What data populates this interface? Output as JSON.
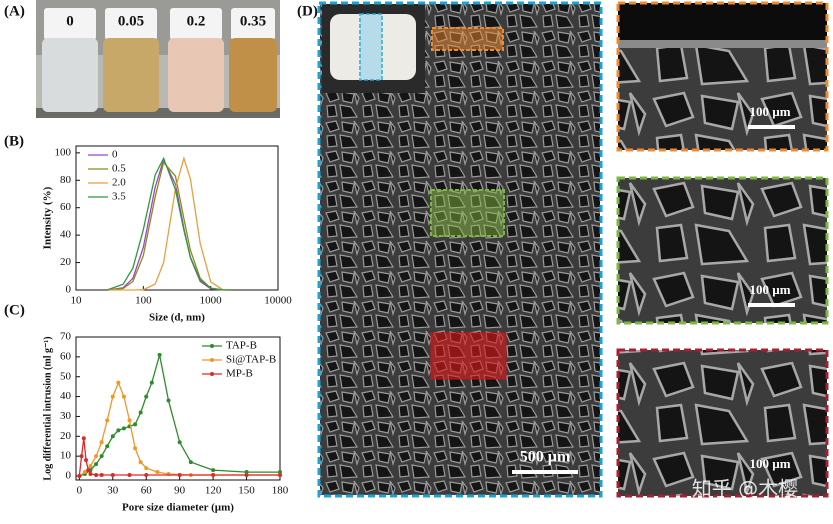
{
  "chart_data": [
    {
      "type": "line",
      "x_label": "Size (d, nm)",
      "y_label": "Intensity (%)",
      "log_x": true,
      "x": [
        30,
        50,
        70,
        100,
        150,
        200,
        300,
        400,
        500,
        700,
        1000,
        1500,
        2000
      ],
      "xlim": [
        10,
        10000
      ],
      "xticks": [
        10,
        100,
        1000,
        10000
      ],
      "ylim": [
        0,
        105
      ],
      "yticks": [
        0,
        20,
        40,
        60,
        80,
        100
      ],
      "legend": "top-left",
      "markers": false,
      "series": [
        {
          "name": "0",
          "color": "#a040d0",
          "values": [
            0,
            1.6,
            8.5,
            31,
            75,
            95,
            77,
            45,
            23.5,
            6.2,
            0.9,
            0,
            0
          ]
        },
        {
          "name": "0.5",
          "color": "#8a8a1a",
          "values": [
            0,
            1.1,
            6.2,
            25,
            68,
            93,
            83,
            52,
            29,
            8.5,
            1.4,
            0.1,
            0
          ]
        },
        {
          "name": "2.0",
          "color": "#e8a040",
          "values": [
            0,
            0,
            0,
            0.2,
            4.3,
            20,
            74,
            96,
            81,
            34,
            6,
            0.3,
            0
          ]
        },
        {
          "name": "3.5",
          "color": "#2e9a3a",
          "values": [
            0.3,
            4.2,
            16,
            44,
            84,
            96,
            73,
            43.5,
            24,
            7.3,
            1.4,
            0.1,
            0
          ]
        }
      ]
    },
    {
      "type": "line",
      "x_label": "Pore size diameter (µm)",
      "y_label": "Log differential intrusion (ml g⁻¹)",
      "log_x": false,
      "xlim": [
        -3,
        180
      ],
      "xticks": [
        0,
        30,
        60,
        90,
        120,
        150,
        180
      ],
      "ylim": [
        -2,
        70
      ],
      "yticks": [
        0,
        10,
        20,
        30,
        40,
        50,
        60,
        70
      ],
      "legend": "top-right",
      "markers": true,
      "series": [
        {
          "name": "TAP-B",
          "color": "#2e8b2e",
          "x": [
            0,
            5,
            10,
            15,
            20,
            25,
            30,
            35,
            40,
            45,
            50,
            55,
            60,
            65,
            72,
            80,
            90,
            100,
            120,
            150,
            180
          ],
          "values": [
            0,
            1,
            3,
            6,
            10,
            15,
            20,
            23,
            24,
            25,
            26,
            32,
            40,
            47,
            61,
            38,
            17,
            7,
            3,
            2,
            2
          ]
        },
        {
          "name": "Si@TAP-B",
          "color": "#f0962a",
          "x": [
            0,
            5,
            10,
            15,
            20,
            25,
            30,
            35,
            40,
            45,
            50,
            55,
            60,
            70,
            80,
            100,
            120,
            150,
            180
          ],
          "values": [
            0,
            2,
            5,
            10,
            17,
            28,
            40,
            47,
            40,
            28,
            14,
            7,
            4,
            2,
            1,
            0.5,
            0.5,
            0.5,
            0.5
          ]
        },
        {
          "name": "MP-B",
          "color": "#e02828",
          "x": [
            0,
            2,
            4,
            6,
            8,
            10,
            15,
            20,
            30,
            45,
            60,
            90,
            120,
            150,
            180
          ],
          "values": [
            0,
            10,
            19,
            8,
            3,
            1,
            0.5,
            0.5,
            0.5,
            0.5,
            0.5,
            0.5,
            0.5,
            0.5,
            0.5
          ]
        }
      ]
    }
  ],
  "panel_labels": [
    "(A)",
    "(B)",
    "(C)",
    "(D)"
  ],
  "vial_labels": [
    "0",
    "0.05",
    "0.2",
    "0.35"
  ],
  "scale_bars": [
    "500 µm",
    "100 µm",
    "100 µm",
    "100 µm"
  ],
  "watermark": "知乎 @木樱"
}
